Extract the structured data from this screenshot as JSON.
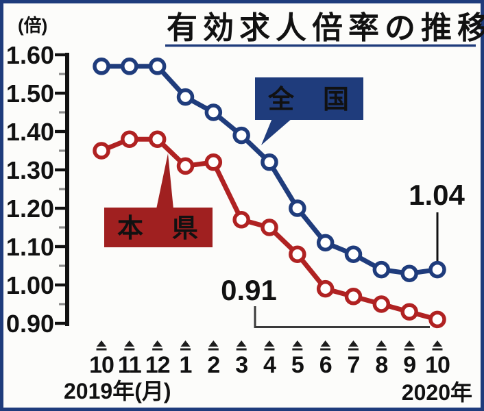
{
  "chart_data": {
    "type": "line",
    "title": "有効求人倍率の推移",
    "ylabel": "(倍)",
    "ylim": [
      0.9,
      1.6
    ],
    "y_ticks": [
      "1.60",
      "1.50",
      "1.40",
      "1.30",
      "1.20",
      "1.10",
      "1.00",
      "0.90"
    ],
    "categories": [
      "10",
      "11",
      "12",
      "1",
      "2",
      "3",
      "4",
      "5",
      "6",
      "7",
      "8",
      "9",
      "10"
    ],
    "x_axis_group_labels": {
      "left": "2019年(月)",
      "right": "2020年"
    },
    "grid": false,
    "legend_position": "inline-callouts",
    "series": [
      {
        "name": "全国",
        "label": "全　国",
        "color": "#1f3c7c",
        "values": [
          1.57,
          1.57,
          1.57,
          1.49,
          1.45,
          1.39,
          1.32,
          1.2,
          1.11,
          1.08,
          1.04,
          1.03,
          1.04
        ]
      },
      {
        "name": "本県",
        "label": "本　県",
        "color": "#b02222",
        "values": [
          1.35,
          1.38,
          1.38,
          1.31,
          1.32,
          1.17,
          1.15,
          1.08,
          0.99,
          0.97,
          0.95,
          0.93,
          0.91
        ]
      }
    ],
    "annotations": [
      {
        "series": "全国",
        "month": "10",
        "text": "1.04"
      },
      {
        "series": "本県",
        "month": "10",
        "text": "0.91"
      }
    ]
  },
  "colors": {
    "frame": "#1f3c7c",
    "national": "#1f3c7c",
    "national_box_text": "#ffffff",
    "prefecture": "#b02222",
    "prefecture_box": "#a02020",
    "prefecture_box_text": "#f5ecd8",
    "axis": "#111111",
    "minor_tick": "#8a8a8a",
    "annotation_line": "#3a3a3a",
    "background": "#fcfcfa"
  }
}
